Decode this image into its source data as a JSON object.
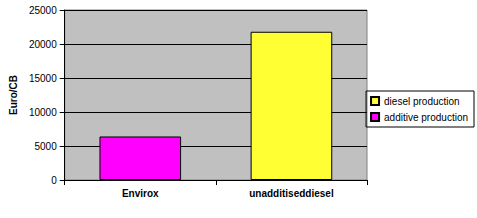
{
  "chart_data": {
    "type": "bar",
    "y_label": "Euro/CB",
    "categories": [
      "Envirox",
      "unadditiseddiesel"
    ],
    "series": [
      {
        "name": "diesel production",
        "color": "#ffff33",
        "values": [
          null,
          21800
        ]
      },
      {
        "name": "additive production",
        "color": "#ff00ff",
        "values": [
          6400,
          null
        ]
      }
    ],
    "stacked": true,
    "ylim": [
      0,
      25000
    ],
    "yticks": [
      0,
      5000,
      10000,
      15000,
      20000,
      25000
    ],
    "grid": true,
    "legend": "right"
  }
}
